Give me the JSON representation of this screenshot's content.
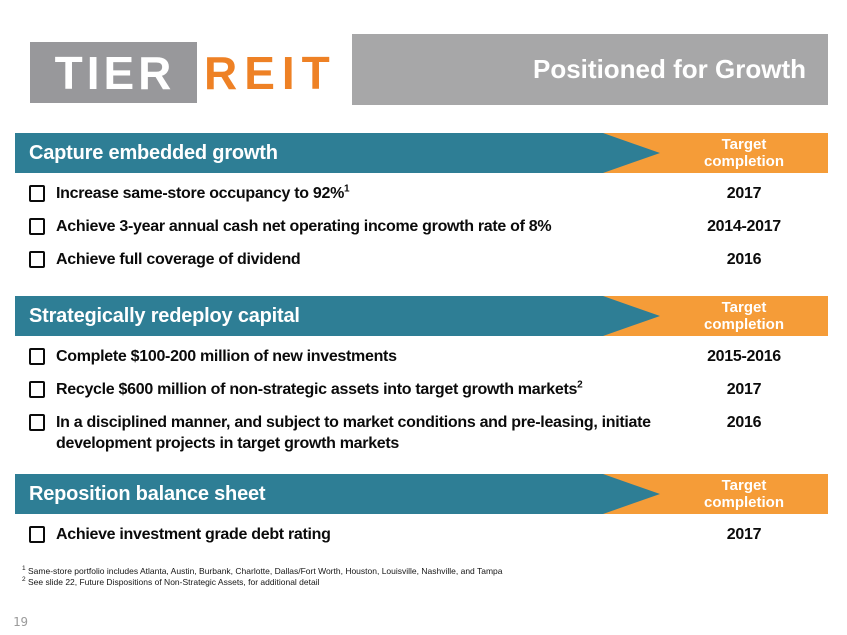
{
  "slide": {
    "page_number": "19"
  },
  "logo": {
    "tier": "TIER",
    "reit": "REIT"
  },
  "banner": {
    "title": "Positioned for Growth"
  },
  "target_column": {
    "line1": "Target",
    "line2": "completion"
  },
  "colors": {
    "teal": "#2E7E95",
    "orange": "#F59C38",
    "logo_gray": "#98989B",
    "banner_gray": "#A7A7A8",
    "reit_orange": "#EE8125"
  },
  "sections": [
    {
      "title": "Capture embedded growth",
      "items": [
        {
          "text": "Increase same-store occupancy to 92%",
          "sup": "1",
          "date": "2017"
        },
        {
          "text": "Achieve 3-year annual cash net operating income growth rate of 8%",
          "sup": "",
          "date": "2014-2017"
        },
        {
          "text": "Achieve full coverage of dividend",
          "sup": "",
          "date": "2016"
        }
      ]
    },
    {
      "title": "Strategically redeploy capital",
      "items": [
        {
          "text": "Complete $100-200 million of new investments",
          "sup": "",
          "date": "2015-2016"
        },
        {
          "text": "Recycle $600 million of non-strategic assets into target growth markets",
          "sup": "2",
          "date": "2017"
        },
        {
          "text": "In a disciplined manner, and subject to market conditions and pre-leasing, initiate development projects in target growth markets",
          "sup": "",
          "date": "2016"
        }
      ]
    },
    {
      "title": "Reposition balance sheet",
      "items": [
        {
          "text": "Achieve investment grade debt rating",
          "sup": "",
          "date": "2017"
        }
      ]
    }
  ],
  "footnotes": [
    {
      "sup": "1",
      "text": "Same-store portfolio includes Atlanta, Austin, Burbank, Charlotte, Dallas/Fort Worth, Houston, Louisville, Nashville, and Tampa"
    },
    {
      "sup": "2",
      "text": "See slide 22, Future Dispositions of Non-Strategic Assets, for additional detail"
    }
  ]
}
